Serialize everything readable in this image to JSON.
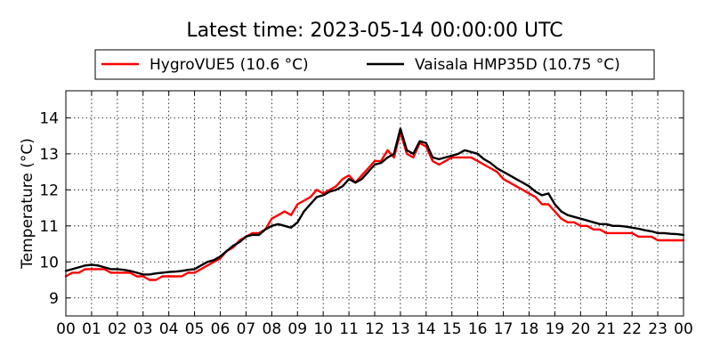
{
  "chart_data": {
    "type": "line",
    "title": "Latest time: 2023-05-14 00:00:00 UTC",
    "xlabel": "",
    "ylabel": "Temperature (°C)",
    "xlim": [
      0,
      24
    ],
    "ylim": [
      8.5,
      14.75
    ],
    "xticks": [
      "00",
      "01",
      "02",
      "03",
      "04",
      "05",
      "06",
      "07",
      "08",
      "09",
      "10",
      "11",
      "12",
      "13",
      "14",
      "15",
      "16",
      "17",
      "18",
      "19",
      "20",
      "21",
      "22",
      "23",
      "00"
    ],
    "yticks": [
      9,
      10,
      11,
      12,
      13,
      14
    ],
    "grid": true,
    "legend_position": "top-center",
    "series": [
      {
        "name": "HygroVUE5 (10.6 °C)",
        "color": "#ff0000",
        "x": [
          0,
          0.25,
          0.5,
          0.75,
          1,
          1.25,
          1.5,
          1.75,
          2,
          2.25,
          2.5,
          2.75,
          3,
          3.25,
          3.5,
          3.75,
          4,
          4.25,
          4.5,
          4.75,
          5,
          5.25,
          5.5,
          5.75,
          6,
          6.25,
          6.5,
          6.75,
          7,
          7.25,
          7.5,
          7.75,
          8,
          8.25,
          8.5,
          8.75,
          9,
          9.25,
          9.5,
          9.75,
          10,
          10.25,
          10.5,
          10.75,
          11,
          11.25,
          11.5,
          11.75,
          12,
          12.25,
          12.5,
          12.75,
          13,
          13.25,
          13.5,
          13.75,
          14,
          14.25,
          14.5,
          14.75,
          15,
          15.25,
          15.5,
          15.75,
          16,
          16.25,
          16.5,
          16.75,
          17,
          17.25,
          17.5,
          17.75,
          18,
          18.25,
          18.5,
          18.75,
          19,
          19.25,
          19.5,
          19.75,
          20,
          20.25,
          20.5,
          20.75,
          21,
          21.25,
          21.5,
          21.75,
          22,
          22.25,
          22.5,
          22.75,
          23,
          23.25,
          23.5,
          23.75,
          24
        ],
        "y": [
          9.6,
          9.7,
          9.7,
          9.8,
          9.8,
          9.8,
          9.8,
          9.7,
          9.7,
          9.7,
          9.7,
          9.6,
          9.6,
          9.5,
          9.5,
          9.6,
          9.6,
          9.6,
          9.6,
          9.7,
          9.7,
          9.8,
          9.9,
          10.0,
          10.1,
          10.3,
          10.4,
          10.6,
          10.7,
          10.8,
          10.8,
          10.9,
          11.2,
          11.3,
          11.4,
          11.3,
          11.6,
          11.7,
          11.8,
          12.0,
          11.9,
          12.0,
          12.1,
          12.3,
          12.4,
          12.2,
          12.4,
          12.6,
          12.8,
          12.8,
          13.1,
          12.9,
          13.6,
          13.0,
          12.9,
          13.3,
          13.2,
          12.8,
          12.7,
          12.8,
          12.9,
          12.9,
          12.9,
          12.9,
          12.8,
          12.7,
          12.6,
          12.5,
          12.3,
          12.2,
          12.1,
          12.0,
          11.9,
          11.8,
          11.6,
          11.6,
          11.4,
          11.2,
          11.1,
          11.1,
          11.0,
          11.0,
          10.9,
          10.9,
          10.8,
          10.8,
          10.8,
          10.8,
          10.8,
          10.7,
          10.7,
          10.7,
          10.6,
          10.6,
          10.6,
          10.6,
          10.6
        ]
      },
      {
        "name": "Vaisala HMP35D (10.75 °C)",
        "color": "#000000",
        "x": [
          0,
          0.25,
          0.5,
          0.75,
          1,
          1.25,
          1.5,
          1.75,
          2,
          2.25,
          2.5,
          2.75,
          3,
          3.25,
          3.5,
          3.75,
          4,
          4.25,
          4.5,
          4.75,
          5,
          5.25,
          5.5,
          5.75,
          6,
          6.25,
          6.5,
          6.75,
          7,
          7.25,
          7.5,
          7.75,
          8,
          8.25,
          8.5,
          8.75,
          9,
          9.25,
          9.5,
          9.75,
          10,
          10.25,
          10.5,
          10.75,
          11,
          11.25,
          11.5,
          11.75,
          12,
          12.25,
          12.5,
          12.75,
          13,
          13.25,
          13.5,
          13.75,
          14,
          14.25,
          14.5,
          14.75,
          15,
          15.25,
          15.5,
          15.75,
          16,
          16.25,
          16.5,
          16.75,
          17,
          17.25,
          17.5,
          17.75,
          18,
          18.25,
          18.5,
          18.75,
          19,
          19.25,
          19.5,
          19.75,
          20,
          20.25,
          20.5,
          20.75,
          21,
          21.25,
          21.5,
          21.75,
          22,
          22.25,
          22.5,
          22.75,
          23,
          23.25,
          23.5,
          23.75,
          24
        ],
        "y": [
          9.75,
          9.8,
          9.85,
          9.9,
          9.92,
          9.9,
          9.85,
          9.8,
          9.8,
          9.78,
          9.75,
          9.7,
          9.65,
          9.65,
          9.68,
          9.7,
          9.72,
          9.73,
          9.75,
          9.78,
          9.8,
          9.9,
          10.0,
          10.05,
          10.15,
          10.3,
          10.45,
          10.55,
          10.7,
          10.75,
          10.75,
          10.9,
          11.0,
          11.05,
          11.0,
          10.95,
          11.1,
          11.4,
          11.6,
          11.8,
          11.85,
          11.95,
          12.0,
          12.1,
          12.3,
          12.2,
          12.3,
          12.5,
          12.7,
          12.75,
          12.9,
          13.0,
          13.7,
          13.1,
          13.0,
          13.35,
          13.3,
          12.9,
          12.85,
          12.9,
          12.95,
          13.0,
          13.1,
          13.05,
          13.0,
          12.85,
          12.75,
          12.6,
          12.5,
          12.4,
          12.3,
          12.2,
          12.1,
          11.95,
          11.85,
          11.9,
          11.6,
          11.4,
          11.3,
          11.25,
          11.2,
          11.15,
          11.1,
          11.05,
          11.05,
          11.0,
          11.0,
          10.98,
          10.95,
          10.92,
          10.88,
          10.85,
          10.8,
          10.8,
          10.78,
          10.77,
          10.75
        ]
      }
    ]
  }
}
